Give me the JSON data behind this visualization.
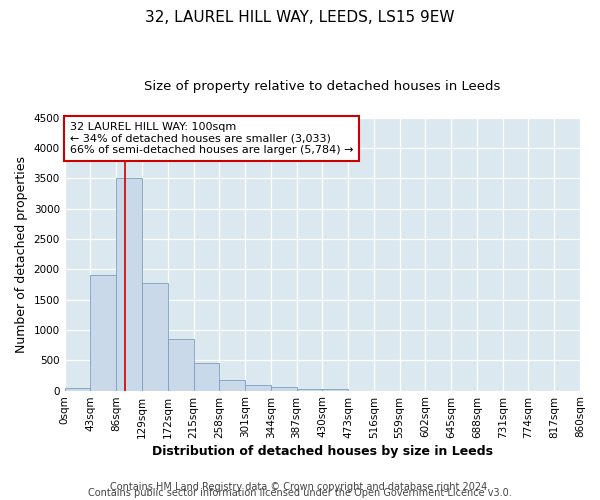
{
  "title": "32, LAUREL HILL WAY, LEEDS, LS15 9EW",
  "subtitle": "Size of property relative to detached houses in Leeds",
  "xlabel": "Distribution of detached houses by size in Leeds",
  "ylabel": "Number of detached properties",
  "bin_edges": [
    0,
    43,
    86,
    129,
    172,
    215,
    258,
    301,
    344,
    387,
    430,
    473,
    516,
    559,
    602,
    645,
    688,
    731,
    774,
    817,
    860
  ],
  "bin_labels": [
    "0sqm",
    "43sqm",
    "86sqm",
    "129sqm",
    "172sqm",
    "215sqm",
    "258sqm",
    "301sqm",
    "344sqm",
    "387sqm",
    "430sqm",
    "473sqm",
    "516sqm",
    "559sqm",
    "602sqm",
    "645sqm",
    "688sqm",
    "731sqm",
    "774sqm",
    "817sqm",
    "860sqm"
  ],
  "bar_heights": [
    50,
    1900,
    3500,
    1780,
    850,
    450,
    175,
    95,
    55,
    30,
    20,
    0,
    0,
    0,
    0,
    0,
    0,
    0,
    0,
    0
  ],
  "bar_color": "#c9d9ea",
  "bar_edge_color": "#7aa0bf",
  "vline_x": 100,
  "vline_color": "#cc0000",
  "ylim": [
    0,
    4500
  ],
  "yticks": [
    0,
    500,
    1000,
    1500,
    2000,
    2500,
    3000,
    3500,
    4000,
    4500
  ],
  "annotation_title": "32 LAUREL HILL WAY: 100sqm",
  "annotation_line1": "← 34% of detached houses are smaller (3,033)",
  "annotation_line2": "66% of semi-detached houses are larger (5,784) →",
  "annotation_box_color": "#ffffff",
  "annotation_box_edge_color": "#cc0000",
  "footer_line1": "Contains HM Land Registry data © Crown copyright and database right 2024.",
  "footer_line2": "Contains public sector information licensed under the Open Government Licence v3.0.",
  "fig_bg_color": "#ffffff",
  "plot_bg_color": "#dce8f0",
  "grid_color": "#ffffff",
  "title_fontsize": 11,
  "subtitle_fontsize": 9.5,
  "axis_label_fontsize": 9,
  "tick_fontsize": 7.5,
  "footer_fontsize": 7
}
